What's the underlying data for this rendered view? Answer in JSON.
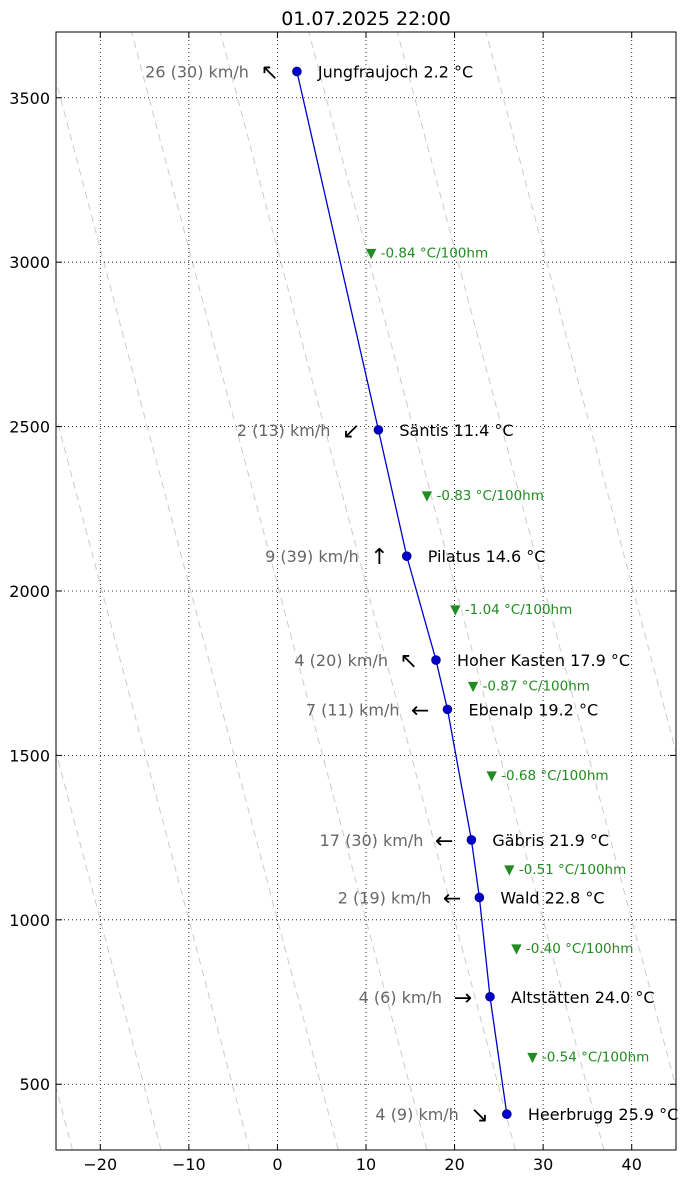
{
  "chart_data": {
    "type": "line",
    "title": "01.07.2025 22:00",
    "xlabel": "",
    "ylabel": "",
    "xlim": [
      -25,
      45
    ],
    "ylim": [
      300,
      3700
    ],
    "x_ticks": [
      -20,
      -10,
      0,
      10,
      20,
      30,
      40
    ],
    "y_ticks": [
      500,
      1000,
      1500,
      2000,
      2500,
      3000,
      3500
    ],
    "grid": true,
    "colors": {
      "profile": "#0000cc",
      "marker": "#0000cc",
      "gradient": "#228b22",
      "wind": "#666666",
      "adiabats": "#cccccc",
      "grid": "#000000"
    },
    "dry_adiabats_x_at_1000m": [
      -30,
      -20,
      -10,
      0,
      10,
      20,
      30,
      40,
      50
    ],
    "dry_adiabat_lapse_deg_per_100m": 0.98,
    "stations": [
      {
        "name": "Jungfraujoch",
        "temp": 2.2,
        "temp_label": "Jungfraujoch 2.2 °C",
        "alt": 3580,
        "wind_label": "26 (30) km/h",
        "arrow": "↖"
      },
      {
        "name": "Säntis",
        "temp": 11.4,
        "temp_label": "Säntis 11.4 °C",
        "alt": 2490,
        "wind_label": "2 (13) km/h",
        "arrow": "↙"
      },
      {
        "name": "Pilatus",
        "temp": 14.6,
        "temp_label": "Pilatus 14.6 °C",
        "alt": 2106,
        "wind_label": "9 (39) km/h",
        "arrow": "↑"
      },
      {
        "name": "Hoher Kasten",
        "temp": 17.9,
        "temp_label": "Hoher Kasten 17.9 °C",
        "alt": 1790,
        "wind_label": "4 (20) km/h",
        "arrow": "↖"
      },
      {
        "name": "Ebenalp",
        "temp": 19.2,
        "temp_label": "Ebenalp 19.2 °C",
        "alt": 1640,
        "wind_label": "7 (11) km/h",
        "arrow": "←"
      },
      {
        "name": "Gäbris",
        "temp": 21.9,
        "temp_label": "Gäbris 21.9 °C",
        "alt": 1243,
        "wind_label": "17 (30) km/h",
        "arrow": "←"
      },
      {
        "name": "Wald",
        "temp": 22.8,
        "temp_label": "Wald 22.8 °C",
        "alt": 1068,
        "wind_label": "2 (19) km/h",
        "arrow": "←"
      },
      {
        "name": "Altstätten",
        "temp": 24.0,
        "temp_label": "Altstätten 24.0 °C",
        "alt": 766,
        "wind_label": "4 (6) km/h",
        "arrow": "→"
      },
      {
        "name": "Heerbrugg",
        "temp": 25.9,
        "temp_label": "Heerbrugg 25.9 °C",
        "alt": 409,
        "wind_label": "4 (9) km/h",
        "arrow": "↘"
      }
    ],
    "gradients": [
      {
        "label": "▼ -0.84 °C/100hm",
        "x": 10.0,
        "alt": 3030
      },
      {
        "label": "▼ -0.83 °C/100hm",
        "x": 16.3,
        "alt": 2292
      },
      {
        "label": "▼ -1.04 °C/100hm",
        "x": 19.5,
        "alt": 1945
      },
      {
        "label": "▼ -0.87 °C/100hm",
        "x": 21.5,
        "alt": 1712
      },
      {
        "label": "▼ -0.68 °C/100hm",
        "x": 23.6,
        "alt": 1440
      },
      {
        "label": "▼ -0.51 °C/100hm",
        "x": 25.6,
        "alt": 1155
      },
      {
        "label": "▼ -0.40 °C/100hm",
        "x": 26.4,
        "alt": 915
      },
      {
        "label": "▼ -0.54 °C/100hm",
        "x": 28.2,
        "alt": 585
      }
    ]
  }
}
